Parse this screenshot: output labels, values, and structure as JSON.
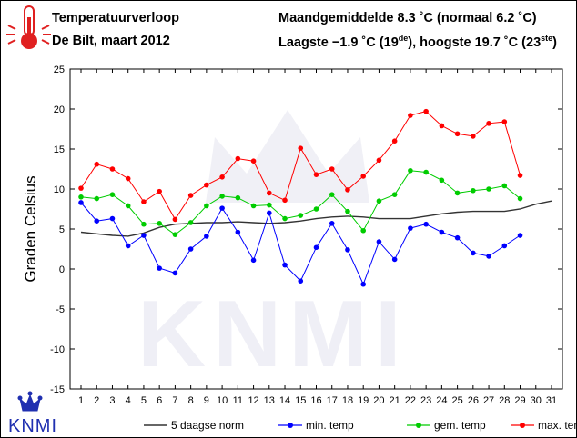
{
  "header": {
    "title": "Temperatuurverloop",
    "subtitle": "De Bilt, maart 2012",
    "stats_line1": "Maandgemiddelde 8.3 ˚C (normaal 6.2 ˚C)",
    "stats_line2_pre": "Laagste −1.9 ˚C (19",
    "stats_line2_sup1": "de",
    "stats_line2_mid": "), hoogste 19.7 ˚C (23",
    "stats_line2_sup2": "ste",
    "stats_line2_post": ")"
  },
  "logo": {
    "text": "KNMI",
    "icon": "crown-icon",
    "watermark": "KNMI"
  },
  "icons": {
    "thermometer": "thermometer-icon"
  },
  "colors": {
    "norm": "#333333",
    "min": "#0000ff",
    "gem": "#00cc00",
    "max": "#ff0000",
    "plot_bg": "#ffffff",
    "watermark": "#ececf4",
    "logo": "#2030b0",
    "thermometer": "#e02020"
  },
  "chart_data": {
    "type": "line",
    "ylabel": "Graden Celsius",
    "xlabel": "",
    "ylim": [
      -15,
      25
    ],
    "yticks": [
      -15,
      -10,
      -5,
      0,
      5,
      10,
      15,
      20,
      25
    ],
    "x": [
      1,
      2,
      3,
      4,
      5,
      6,
      7,
      8,
      9,
      10,
      11,
      12,
      13,
      14,
      15,
      16,
      17,
      18,
      19,
      20,
      21,
      22,
      23,
      24,
      25,
      26,
      27,
      28,
      29,
      30,
      31
    ],
    "grid": false,
    "legend": "bottom",
    "series": [
      {
        "name": "5 daagse norm",
        "key": "norm",
        "markers": false,
        "values": [
          4.6,
          4.4,
          4.2,
          4.1,
          4.5,
          5.2,
          5.6,
          5.7,
          5.8,
          5.8,
          5.9,
          5.8,
          5.7,
          5.8,
          6.0,
          6.3,
          6.5,
          6.6,
          6.5,
          6.3,
          6.3,
          6.3,
          6.6,
          6.9,
          7.1,
          7.2,
          7.2,
          7.2,
          7.5,
          8.1,
          8.5
        ]
      },
      {
        "name": "min. temp",
        "key": "min",
        "markers": true,
        "values": [
          8.3,
          6.0,
          6.3,
          2.9,
          4.2,
          0.1,
          -0.5,
          2.5,
          4.1,
          7.6,
          4.6,
          1.1,
          7.0,
          0.5,
          -1.5,
          2.7,
          5.7,
          2.4,
          -1.9,
          3.4,
          1.2,
          5.1,
          5.6,
          4.6,
          3.9,
          2.0,
          1.6,
          2.9,
          4.2,
          null,
          null
        ]
      },
      {
        "name": "gem. temp",
        "key": "gem",
        "markers": true,
        "values": [
          9.0,
          8.8,
          9.3,
          7.9,
          5.6,
          5.7,
          4.3,
          5.8,
          7.9,
          9.1,
          8.9,
          7.9,
          8.0,
          6.3,
          6.7,
          7.5,
          9.3,
          7.2,
          4.8,
          8.5,
          9.3,
          12.3,
          12.1,
          11.1,
          9.5,
          9.8,
          10.0,
          10.4,
          8.8,
          null,
          null
        ]
      },
      {
        "name": "max. temp",
        "key": "max",
        "markers": true,
        "values": [
          10.1,
          13.1,
          12.5,
          11.3,
          8.4,
          9.7,
          6.2,
          9.2,
          10.5,
          11.5,
          13.8,
          13.5,
          9.5,
          8.6,
          15.1,
          11.8,
          12.5,
          9.9,
          11.6,
          13.6,
          16.0,
          19.2,
          19.7,
          17.9,
          16.9,
          16.6,
          18.2,
          18.4,
          11.7,
          null,
          null
        ]
      }
    ]
  }
}
